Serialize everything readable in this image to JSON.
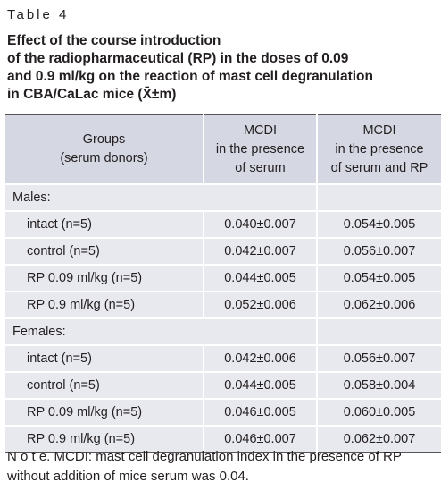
{
  "label": "Table 4",
  "title": [
    "Effect of the course introduction",
    "of the radiopharmaceutical (RP) in the doses of 0.09",
    "and 0.9 ml/kg on the reaction of mast cell degranulation",
    "in CBA/CaLac mice  (X̄±m)"
  ],
  "table": {
    "header": [
      [
        "Groups",
        "(serum donors)"
      ],
      [
        "MCDI",
        "in the presence",
        "of serum"
      ],
      [
        "MCDI",
        "in the presence",
        "of serum and RP"
      ]
    ],
    "sections": [
      {
        "name": "Males:",
        "rows": [
          [
            "intact (n=5)",
            "0.040±0.007",
            "0.054±0.005"
          ],
          [
            "control (n=5)",
            "0.042±0.007",
            "0.056±0.007"
          ],
          [
            "RP 0.09 ml/kg (n=5)",
            "0.044±0.005",
            "0.054±0.005"
          ],
          [
            "RP 0.9 ml/kg (n=5)",
            "0.052±0.006",
            "0.062±0.006"
          ]
        ]
      },
      {
        "name": "Females:",
        "rows": [
          [
            "intact (n=5)",
            "0.042±0.006",
            "0.056±0.007"
          ],
          [
            "control (n=5)",
            "0.044±0.005",
            "0.058±0.004"
          ],
          [
            "RP 0.09 ml/kg (n=5)",
            "0.046±0.005",
            "0.060±0.005"
          ],
          [
            "RP 0.9 ml/kg (n=5)",
            "0.046±0.007",
            "0.062±0.007"
          ]
        ]
      }
    ]
  },
  "note": {
    "lead": "N o t e.",
    "text": "MCDI: mast cell degranulation index in the presence of RP without addition of mice serum was 0.04."
  }
}
